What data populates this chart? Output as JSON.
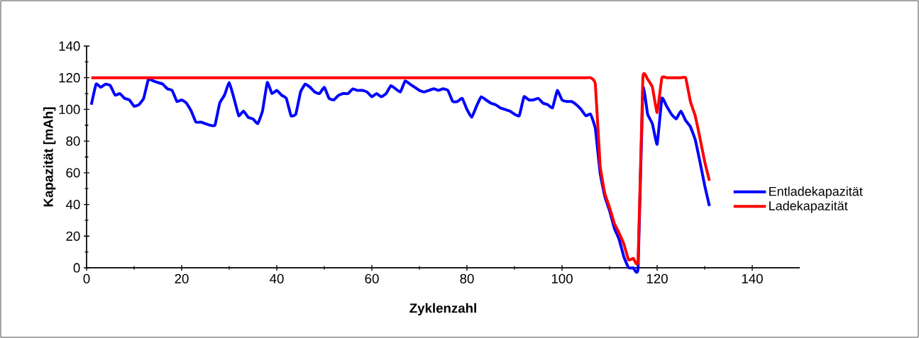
{
  "chart_data": {
    "type": "line",
    "xlabel": "Zyklenzahl",
    "ylabel": "Kapazität [mAh]",
    "x": [
      1,
      2,
      3,
      4,
      5,
      6,
      7,
      8,
      9,
      10,
      11,
      12,
      13,
      14,
      15,
      16,
      17,
      18,
      19,
      20,
      21,
      22,
      23,
      24,
      25,
      26,
      27,
      28,
      29,
      30,
      31,
      32,
      33,
      34,
      35,
      36,
      37,
      38,
      39,
      40,
      41,
      42,
      43,
      44,
      45,
      46,
      47,
      48,
      49,
      50,
      51,
      52,
      53,
      54,
      55,
      56,
      57,
      58,
      59,
      60,
      61,
      62,
      63,
      64,
      65,
      66,
      67,
      68,
      69,
      70,
      71,
      72,
      73,
      74,
      75,
      76,
      77,
      78,
      79,
      80,
      81,
      82,
      83,
      84,
      85,
      86,
      87,
      88,
      89,
      90,
      91,
      92,
      93,
      94,
      95,
      96,
      97,
      98,
      99,
      100,
      101,
      102,
      103,
      104,
      105,
      106,
      107,
      108,
      109,
      110,
      111,
      112,
      113,
      114,
      115,
      116,
      117,
      118,
      119,
      120,
      121,
      122,
      123,
      124,
      125,
      126,
      127,
      128,
      129,
      130,
      131
    ],
    "series": [
      {
        "name": "Entladekapazität",
        "color": "#0000ff",
        "values": [
          103,
          116,
          114,
          116,
          115,
          109,
          110,
          107,
          106,
          102,
          103,
          107,
          119,
          118,
          117,
          116,
          113,
          112,
          105,
          106,
          104,
          99,
          92,
          92,
          91,
          90,
          90,
          104,
          109,
          117,
          107,
          96,
          99,
          95,
          94,
          91,
          99,
          117,
          110,
          112,
          109,
          107,
          96,
          97,
          111,
          116,
          114,
          111,
          110,
          114,
          107,
          106,
          109,
          110,
          110,
          113,
          112,
          112,
          111,
          108,
          110,
          108,
          110,
          115,
          113,
          111,
          118,
          116,
          114,
          112,
          111,
          112,
          113,
          112,
          113,
          112,
          105,
          105,
          107,
          100,
          95,
          102,
          108,
          106,
          104,
          103,
          101,
          100,
          99,
          97,
          96,
          108,
          106,
          106,
          107,
          104,
          103,
          101,
          112,
          106,
          105,
          105,
          103,
          100,
          96,
          97,
          88,
          60,
          45,
          36,
          25,
          18,
          7,
          0,
          0,
          0,
          113,
          97,
          91,
          78,
          107,
          102,
          97,
          94,
          99,
          93,
          89,
          81,
          67,
          52,
          39
        ]
      },
      {
        "name": "Ladekapazität",
        "color": "#ff0000",
        "values": [
          120,
          120,
          120,
          120,
          120,
          120,
          120,
          120,
          120,
          120,
          120,
          120,
          120,
          120,
          120,
          120,
          120,
          120,
          120,
          120,
          120,
          120,
          120,
          120,
          120,
          120,
          120,
          120,
          120,
          120,
          120,
          120,
          120,
          120,
          120,
          120,
          120,
          120,
          120,
          120,
          120,
          120,
          120,
          120,
          120,
          120,
          120,
          120,
          120,
          120,
          120,
          120,
          120,
          120,
          120,
          120,
          120,
          120,
          120,
          120,
          120,
          120,
          120,
          120,
          120,
          120,
          120,
          120,
          120,
          120,
          120,
          120,
          120,
          120,
          120,
          120,
          120,
          120,
          120,
          120,
          120,
          120,
          120,
          120,
          120,
          120,
          120,
          120,
          120,
          120,
          120,
          120,
          120,
          120,
          120,
          120,
          120,
          120,
          120,
          120,
          120,
          120,
          120,
          120,
          120,
          120,
          116,
          65,
          47,
          38,
          28,
          22,
          15,
          5,
          6,
          5,
          120,
          119,
          114,
          98,
          120,
          120,
          120,
          120,
          120,
          120,
          105,
          96,
          82,
          67,
          55
        ]
      }
    ],
    "xlim": [
      0,
      150
    ],
    "xticks": [
      0,
      20,
      40,
      60,
      80,
      100,
      120,
      140
    ],
    "ylim": [
      0,
      140
    ],
    "yticks": [
      0,
      20,
      40,
      60,
      80,
      100,
      120,
      140
    ],
    "grid": false,
    "legend": "right",
    "marker": "none",
    "line_style": "solid"
  }
}
